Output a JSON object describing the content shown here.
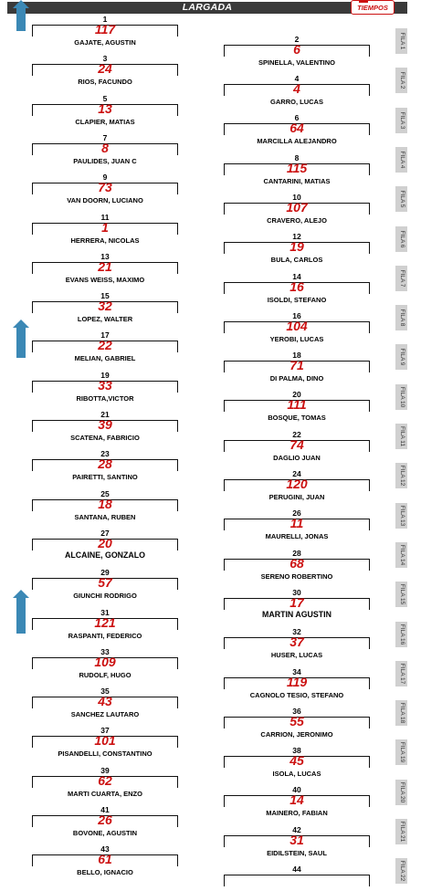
{
  "header": {
    "title": "LARGADA",
    "logo_text": "TIEMPOS"
  },
  "colors": {
    "car_number": "#cc1111",
    "header_bg": "#3a3a3a",
    "fila_bg": "#d0d0d0",
    "arrow": "#3b88b5"
  },
  "grid": [
    {
      "pos": "1",
      "car": "117",
      "driver": "GAJATE, AGUSTIN"
    },
    {
      "pos": "2",
      "car": "6",
      "driver": "SPINELLA, VALENTINO"
    },
    {
      "pos": "3",
      "car": "24",
      "driver": "RIOS, FACUNDO"
    },
    {
      "pos": "4",
      "car": "4",
      "driver": "GARRO, LUCAS"
    },
    {
      "pos": "5",
      "car": "13",
      "driver": "CLAPIER, MATIAS"
    },
    {
      "pos": "6",
      "car": "64",
      "driver": "MARCILLA ALEJANDRO"
    },
    {
      "pos": "7",
      "car": "8",
      "driver": "PAULIDES, JUAN C"
    },
    {
      "pos": "8",
      "car": "115",
      "driver": "CANTARINI, MATIAS"
    },
    {
      "pos": "9",
      "car": "73",
      "driver": "VAN DOORN, LUCIANO"
    },
    {
      "pos": "10",
      "car": "107",
      "driver": "CRAVERO, ALEJO"
    },
    {
      "pos": "11",
      "car": "1",
      "driver": "HERRERA, NICOLAS"
    },
    {
      "pos": "12",
      "car": "19",
      "driver": "BULA, CARLOS"
    },
    {
      "pos": "13",
      "car": "21",
      "driver": "EVANS WEISS, MAXIMO"
    },
    {
      "pos": "14",
      "car": "16",
      "driver": "ISOLDI, STEFANO"
    },
    {
      "pos": "15",
      "car": "32",
      "driver": "LOPEZ, WALTER"
    },
    {
      "pos": "16",
      "car": "104",
      "driver": "YEROBI, LUCAS"
    },
    {
      "pos": "17",
      "car": "22",
      "driver": "MELIAN, GABRIEL"
    },
    {
      "pos": "18",
      "car": "71",
      "driver": "DI PALMA, DINO"
    },
    {
      "pos": "19",
      "car": "33",
      "driver": "RIBOTTA,VICTOR"
    },
    {
      "pos": "20",
      "car": "111",
      "driver": "BOSQUE, TOMAS"
    },
    {
      "pos": "21",
      "car": "39",
      "driver": "SCATENA, FABRICIO"
    },
    {
      "pos": "22",
      "car": "74",
      "driver": "DAGLIO JUAN"
    },
    {
      "pos": "23",
      "car": "28",
      "driver": "PAIRETTI, SANTINO"
    },
    {
      "pos": "24",
      "car": "120",
      "driver": "PERUGINI, JUAN"
    },
    {
      "pos": "25",
      "car": "18",
      "driver": "SANTANA, RUBEN"
    },
    {
      "pos": "26",
      "car": "11",
      "driver": "MAURELLI, JONAS"
    },
    {
      "pos": "27",
      "car": "20",
      "driver": "ALCAINE, GONZALO"
    },
    {
      "pos": "28",
      "car": "68",
      "driver": "SERENO ROBERTINO"
    },
    {
      "pos": "29",
      "car": "57",
      "driver": "GIUNCHI RODRIGO"
    },
    {
      "pos": "30",
      "car": "17",
      "driver": "MARTIN AGUSTIN"
    },
    {
      "pos": "31",
      "car": "121",
      "driver": "RASPANTI, FEDERICO"
    },
    {
      "pos": "32",
      "car": "37",
      "driver": "HUSER, LUCAS"
    },
    {
      "pos": "33",
      "car": "109",
      "driver": "RUDOLF, HUGO"
    },
    {
      "pos": "34",
      "car": "119",
      "driver": "CAGNOLO TESIO, STEFANO"
    },
    {
      "pos": "35",
      "car": "43",
      "driver": "SANCHEZ LAUTARO"
    },
    {
      "pos": "36",
      "car": "55",
      "driver": "CARRION, JERONIMO"
    },
    {
      "pos": "37",
      "car": "101",
      "driver": "PISANDELLI, CONSTANTINO"
    },
    {
      "pos": "38",
      "car": "45",
      "driver": "ISOLA, LUCAS"
    },
    {
      "pos": "39",
      "car": "62",
      "driver": "MARTI CUARTA, ENZO"
    },
    {
      "pos": "40",
      "car": "14",
      "driver": "MAINERO, FABIAN"
    },
    {
      "pos": "41",
      "car": "26",
      "driver": "BOVONE, AGUSTIN"
    },
    {
      "pos": "42",
      "car": "31",
      "driver": "EIDILSTEIN, SAUL"
    },
    {
      "pos": "43",
      "car": "61",
      "driver": "BELLO, IGNACIO"
    },
    {
      "pos": "44",
      "car": "",
      "driver": ""
    }
  ],
  "filas": [
    "FILA 1",
    "FILA 2",
    "FILA 3",
    "FILA 4",
    "FILA 5",
    "FILA 6",
    "FILA 7",
    "FILA 8",
    "FILA 9",
    "FILA 10",
    "FILA 11",
    "FILA 12",
    "FILA 13",
    "FILA 14",
    "FILA 15",
    "FILA 16",
    "FILA 17",
    "FILA 18",
    "FILA 19",
    "FILA 20",
    "FILA 21",
    "FILA 22"
  ]
}
